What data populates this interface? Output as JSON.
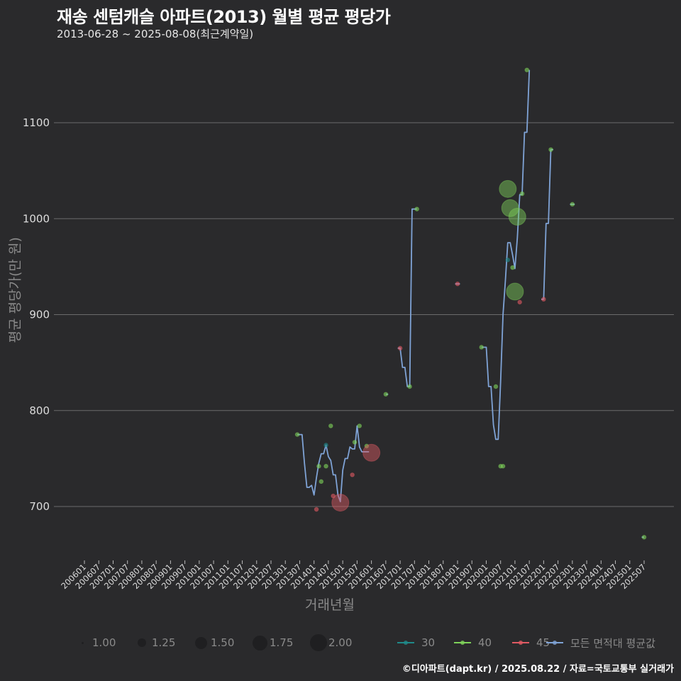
{
  "header": {
    "title": "재송 센텀캐슬 아파트(2013) 월별 평균 평당가",
    "subtitle": "2013-06-28 ~ 2025-08-08(최근계약일)"
  },
  "axes": {
    "ylabel": "평균 평당가(만 원)",
    "xlabel": "거래년월"
  },
  "caption": "©디아파트(dapt.kr) / 2025.08.22 / 자료=국토교통부 실거래가",
  "legend": {
    "size": [
      {
        "label": "1.00",
        "r": 1.5
      },
      {
        "label": "1.25",
        "r": 6
      },
      {
        "label": "1.50",
        "r": 8.5
      },
      {
        "label": "1.75",
        "r": 10.5
      },
      {
        "label": "2.00",
        "r": 12
      }
    ],
    "color": [
      {
        "label": "30",
        "color": "#1f8a8a"
      },
      {
        "label": "40",
        "color": "#7fd35a"
      },
      {
        "label": "45",
        "color": "#e05a63"
      },
      {
        "label": "모든 면적대 평균값",
        "color": "#7fa3d6"
      }
    ]
  },
  "chart_data": {
    "type": "line",
    "title": "재송 센텀캐슬 아파트(2013) 월별 평균 평당가",
    "subtitle": "2013-06-28 ~ 2025-08-08(최근계약일)",
    "xlabel": "거래년월",
    "ylabel": "평균 평당가(만 원)",
    "ylim": [
      648,
      1160
    ],
    "yticks": [
      700,
      800,
      900,
      1000,
      1100
    ],
    "grid": true,
    "legend_position": "bottom",
    "xticks": [
      "200601",
      "200607",
      "200701",
      "200707",
      "200801",
      "200807",
      "200901",
      "200907",
      "201001",
      "201007",
      "201101",
      "201107",
      "201201",
      "201207",
      "201301",
      "201307",
      "201401",
      "201407",
      "201501",
      "201507",
      "201601",
      "201607",
      "201701",
      "201707",
      "201801",
      "201807",
      "201901",
      "201907",
      "202001",
      "202007",
      "202101",
      "202107",
      "202201",
      "202207",
      "202301",
      "202307",
      "202401",
      "202407",
      "202501",
      "202507"
    ],
    "series": [
      {
        "name": "모든 면적대 평균값",
        "color": "#7fa3d6",
        "points": [
          [
            "201306",
            775
          ],
          [
            "201307",
            775
          ],
          [
            "201308",
            775
          ],
          [
            "201309",
            745
          ],
          [
            "201310",
            720
          ],
          [
            "201311",
            720
          ],
          [
            "201312",
            722
          ],
          [
            "201401",
            712
          ],
          [
            "201402",
            730
          ],
          [
            "201403",
            745
          ],
          [
            "201404",
            755
          ],
          [
            "201405",
            755
          ],
          [
            "201406",
            764
          ],
          [
            "201407",
            752
          ],
          [
            "201408",
            748
          ],
          [
            "201409",
            733
          ],
          [
            "201410",
            733
          ],
          [
            "201411",
            712
          ],
          [
            "201412",
            705
          ],
          [
            "201501",
            738
          ],
          [
            "201502",
            750
          ],
          [
            "201503",
            750
          ],
          [
            "201504",
            762
          ],
          [
            "201505",
            760
          ],
          [
            "201506",
            760
          ],
          [
            "201507",
            784
          ],
          [
            "201508",
            762
          ],
          [
            "201509",
            757
          ],
          [
            "201510",
            757
          ],
          [
            "201512",
            757
          ],
          [
            "201607",
            817
          ],
          [
            "201608",
            817
          ],
          [
            "201612",
            865
          ],
          [
            "201701",
            865
          ],
          [
            "201702",
            845
          ],
          [
            "201703",
            845
          ],
          [
            "201704",
            825
          ],
          [
            "201705",
            825
          ],
          [
            "201706",
            1010
          ],
          [
            "201707",
            1010
          ],
          [
            "201708",
            1010
          ],
          [
            "201812",
            932
          ],
          [
            "201902",
            932
          ],
          [
            "201911",
            866
          ],
          [
            "202001",
            866
          ],
          [
            "202002",
            825
          ],
          [
            "202003",
            825
          ],
          [
            "202004",
            785
          ],
          [
            "202005",
            770
          ],
          [
            "202006",
            770
          ],
          [
            "202007",
            830
          ],
          [
            "202008",
            900
          ],
          [
            "202009",
            935
          ],
          [
            "202010",
            975
          ],
          [
            "202011",
            975
          ],
          [
            "202012",
            962
          ],
          [
            "202101",
            948
          ],
          [
            "202102",
            980
          ],
          [
            "202103",
            1025
          ],
          [
            "202104",
            1025
          ],
          [
            "202105",
            1090
          ],
          [
            "202106",
            1090
          ],
          [
            "202107",
            1155
          ],
          [
            "202112",
            916
          ],
          [
            "202201",
            916
          ],
          [
            "202202",
            995
          ],
          [
            "202203",
            995
          ],
          [
            "202204",
            1072
          ],
          [
            "202205",
            1072
          ],
          [
            "202212",
            1015
          ],
          [
            "202302",
            1015
          ],
          [
            "202506",
            668
          ],
          [
            "202507",
            668
          ]
        ]
      },
      {
        "name": "30",
        "color": "#1f8a8a",
        "points": [
          [
            "201406",
            764
          ],
          [
            "202010",
            957
          ]
        ]
      },
      {
        "name": "40",
        "color": "#7fd35a",
        "points": [
          [
            "201306",
            775,
            1
          ],
          [
            "201403",
            742,
            1
          ],
          [
            "201404",
            726,
            1
          ],
          [
            "201406",
            742,
            1
          ],
          [
            "201408",
            784,
            1
          ],
          [
            "201506",
            767,
            1
          ],
          [
            "201508",
            784,
            1
          ],
          [
            "201511",
            763,
            1
          ],
          [
            "201607",
            817,
            1
          ],
          [
            "201705",
            825,
            1
          ],
          [
            "201708",
            1010,
            1
          ],
          [
            "201911",
            866,
            1
          ],
          [
            "202005",
            825,
            1
          ],
          [
            "202007",
            742,
            1
          ],
          [
            "202008",
            742,
            1
          ],
          [
            "202010",
            1031,
            2
          ],
          [
            "202011",
            1011,
            2
          ],
          [
            "202012",
            949,
            1
          ],
          [
            "202101",
            924,
            2
          ],
          [
            "202102",
            1002,
            2
          ],
          [
            "202104",
            1026,
            1
          ],
          [
            "202106",
            1155,
            1
          ],
          [
            "202204",
            1072,
            1
          ],
          [
            "202301",
            1015,
            1
          ],
          [
            "202507",
            668,
            1
          ]
        ]
      },
      {
        "name": "45",
        "color": "#e05a63",
        "points": [
          [
            "201402",
            697,
            1
          ],
          [
            "201409",
            711,
            1
          ],
          [
            "201412",
            704,
            2
          ],
          [
            "201505",
            733,
            1
          ],
          [
            "201601",
            756,
            2
          ],
          [
            "201701",
            865,
            1
          ],
          [
            "201901",
            932,
            1
          ],
          [
            "202103",
            913,
            1
          ],
          [
            "202201",
            916,
            1
          ]
        ]
      }
    ]
  }
}
